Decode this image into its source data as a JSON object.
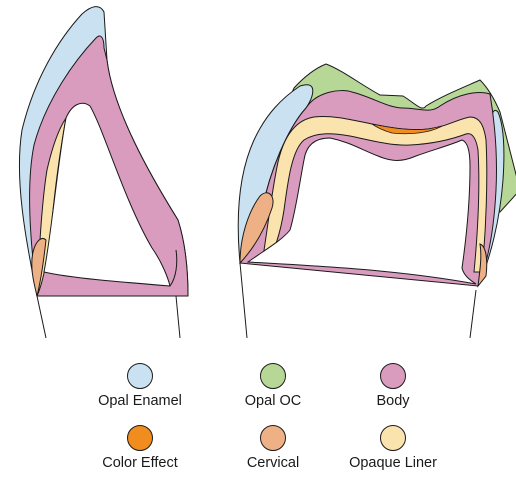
{
  "colors": {
    "opal_enamel": "#c9e1f0",
    "opal_oc": "#b6d795",
    "body": "#d99bbe",
    "color_effect": "#f18c1f",
    "cervical": "#eeb185",
    "opaque_liner": "#fbe3ae",
    "outline": "#1a1a1a"
  },
  "legend": [
    {
      "label": "Opal Enamel",
      "color": "#c9e1f0",
      "icon": "circle-swatch"
    },
    {
      "label": "Opal OC",
      "color": "#b6d795",
      "icon": "circle-swatch"
    },
    {
      "label": "Body",
      "color": "#d99bbe",
      "icon": "circle-swatch"
    },
    {
      "label": "Color Effect",
      "color": "#f18c1f",
      "icon": "circle-swatch"
    },
    {
      "label": "Cervical",
      "color": "#eeb185",
      "icon": "circle-swatch"
    },
    {
      "label": "Opaque Liner",
      "color": "#fbe3ae",
      "icon": "circle-swatch"
    }
  ]
}
